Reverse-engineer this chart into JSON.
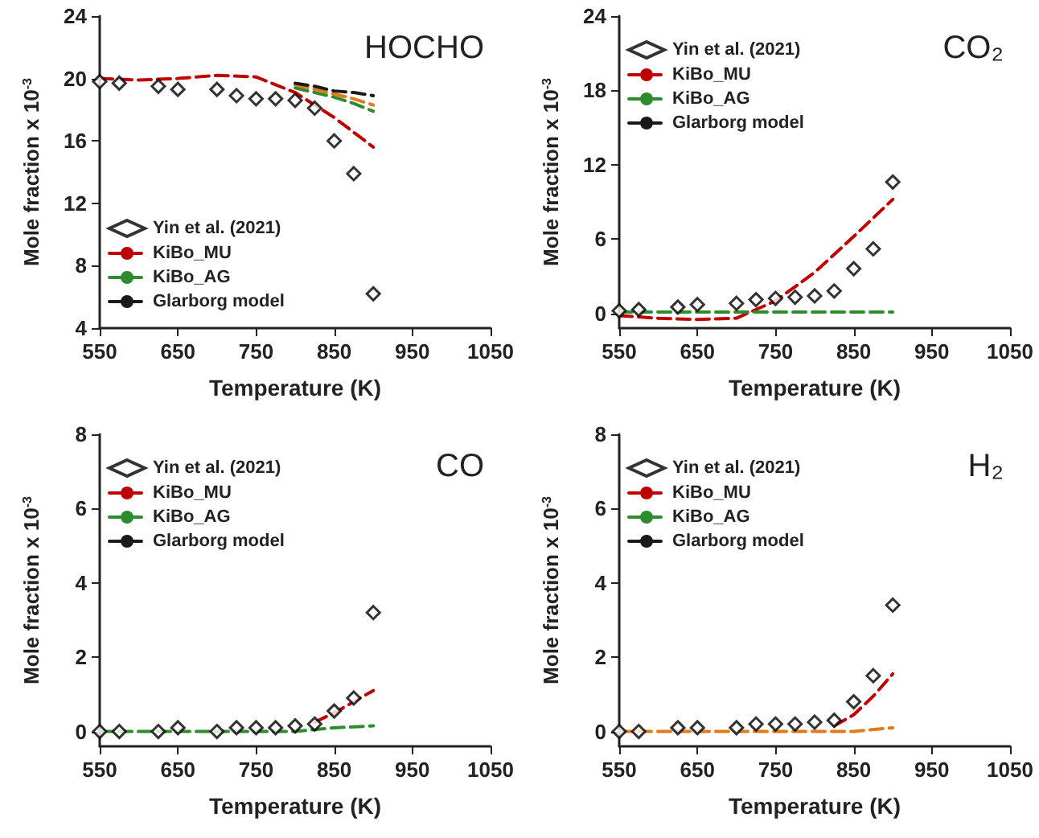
{
  "chart_data": [
    {
      "type": "line",
      "xlabel": "Temperature (K)",
      "ylabel": "Mole fraction x 10$^{-3}$",
      "annotations": [
        "HOCHO"
      ],
      "xlim": [
        550,
        1050
      ],
      "xticks": [
        550,
        650,
        750,
        850,
        950,
        1050
      ],
      "ylim": [
        4,
        24
      ],
      "yticks": [
        4,
        8,
        12,
        16,
        20,
        24
      ],
      "legend": "bottom left",
      "line_style": "dashed",
      "series": [
        {
          "name": "Yin et al. (2021)",
          "type": "scatter",
          "marker": "diamond",
          "color": "#000000",
          "x": [
            550,
            575,
            625,
            650,
            700,
            725,
            750,
            775,
            800,
            825,
            850,
            875,
            900
          ],
          "values": [
            19.8,
            19.7,
            19.5,
            19.3,
            19.3,
            18.9,
            18.7,
            18.7,
            18.6,
            18.1,
            16.0,
            13.9,
            6.2
          ]
        },
        {
          "name": "KiBo_MU",
          "color": "#c00000",
          "marker": "none",
          "x": [
            550,
            600,
            650,
            700,
            750,
            800,
            850,
            900
          ],
          "values": [
            20.0,
            19.9,
            20.0,
            20.2,
            20.1,
            19.1,
            17.5,
            15.6
          ]
        },
        {
          "name": "KiBo_AG",
          "color": "#2e8b2e",
          "marker": "none",
          "x": [
            800,
            825,
            850,
            875,
            900
          ],
          "values": [
            19.4,
            19.1,
            18.8,
            18.4,
            17.9
          ]
        },
        {
          "color": "#e07b1a",
          "marker": "none",
          "x": [
            800,
            825,
            850,
            875,
            900
          ],
          "values": [
            19.6,
            19.3,
            19.0,
            18.7,
            18.3
          ]
        },
        {
          "name": "Glarborg model",
          "color": "#1a1a1a",
          "marker": "none",
          "x": [
            800,
            825,
            850,
            875,
            900
          ],
          "values": [
            19.7,
            19.5,
            19.2,
            19.1,
            18.9
          ]
        }
      ]
    },
    {
      "type": "line",
      "xlabel": "Temperature (K)",
      "ylabel": "Mole fraction x 10$^{-3}$",
      "annotations": [
        "CO₂"
      ],
      "xlim": [
        550,
        1050
      ],
      "xticks": [
        550,
        650,
        750,
        850,
        950,
        1050
      ],
      "ylim": [
        -1.2,
        24
      ],
      "yticks": [
        0,
        6,
        12,
        18,
        24
      ],
      "legend": "top left",
      "line_style": "dashed",
      "series": [
        {
          "name": "Yin et al. (2021)",
          "type": "scatter",
          "marker": "diamond",
          "color": "#000000",
          "x": [
            550,
            575,
            625,
            650,
            700,
            725,
            750,
            775,
            800,
            825,
            850,
            875,
            900
          ],
          "values": [
            0.2,
            0.3,
            0.5,
            0.7,
            0.8,
            1.1,
            1.2,
            1.3,
            1.4,
            1.8,
            3.6,
            5.2,
            10.6
          ]
        },
        {
          "name": "KiBo_MU",
          "color": "#c00000",
          "marker": "none",
          "x": [
            550,
            600,
            650,
            700,
            750,
            800,
            850,
            900
          ],
          "values": [
            -0.2,
            -0.4,
            -0.5,
            -0.4,
            1.0,
            3.3,
            6.2,
            9.2
          ]
        },
        {
          "name": "KiBo_AG",
          "color": "#2e8b2e",
          "marker": "none",
          "x": [
            550,
            600,
            650,
            700,
            750,
            800,
            850,
            900
          ],
          "values": [
            0.1,
            0.1,
            0.1,
            0.1,
            0.1,
            0.1,
            0.1,
            0.1
          ]
        },
        {
          "name": "Glarborg model",
          "color": "#1a1a1a",
          "marker": "none"
        }
      ]
    },
    {
      "type": "line",
      "xlabel": "Temperature (K)",
      "ylabel": "Mole fraction x 10$^{-3}$",
      "annotations": [
        "CO"
      ],
      "xlim": [
        550,
        1050
      ],
      "xticks": [
        550,
        650,
        750,
        850,
        950,
        1050
      ],
      "ylim": [
        -0.4,
        8
      ],
      "yticks": [
        0,
        2,
        4,
        6,
        8
      ],
      "legend": "top left",
      "line_style": "dashed",
      "series": [
        {
          "name": "Yin et al. (2021)",
          "type": "scatter",
          "marker": "diamond",
          "color": "#000000",
          "x": [
            550,
            575,
            625,
            650,
            700,
            725,
            750,
            775,
            800,
            825,
            850,
            875,
            900
          ],
          "values": [
            0,
            0,
            0,
            0.1,
            0,
            0.1,
            0.1,
            0.1,
            0.15,
            0.2,
            0.55,
            0.9,
            3.2
          ]
        },
        {
          "name": "KiBo_MU",
          "color": "#c00000",
          "marker": "none",
          "x": [
            825,
            850,
            875,
            900
          ],
          "values": [
            0.25,
            0.5,
            0.8,
            1.1
          ]
        },
        {
          "name": "KiBo_AG",
          "color": "#2e8b2e",
          "marker": "none",
          "x": [
            550,
            600,
            650,
            700,
            750,
            800,
            850,
            900
          ],
          "values": [
            0,
            0,
            0,
            0,
            0,
            0,
            0.1,
            0.15
          ]
        },
        {
          "name": "Glarborg model",
          "color": "#1a1a1a",
          "marker": "none"
        }
      ]
    },
    {
      "type": "line",
      "xlabel": "Temperature (K)",
      "ylabel": "Mole fraction x 10$^{-3}$",
      "annotations": [
        "H₂"
      ],
      "xlim": [
        550,
        1050
      ],
      "xticks": [
        550,
        650,
        750,
        850,
        950,
        1050
      ],
      "ylim": [
        -0.4,
        8
      ],
      "yticks": [
        0,
        2,
        4,
        6,
        8
      ],
      "legend": "top left",
      "line_style": "dashed",
      "series": [
        {
          "name": "Yin et al. (2021)",
          "type": "scatter",
          "marker": "diamond",
          "color": "#000000",
          "x": [
            550,
            575,
            625,
            650,
            700,
            725,
            750,
            775,
            800,
            825,
            850,
            875,
            900
          ],
          "values": [
            0,
            0,
            0.1,
            0.1,
            0.1,
            0.2,
            0.2,
            0.2,
            0.25,
            0.3,
            0.8,
            1.5,
            3.4
          ]
        },
        {
          "name": "KiBo_MU",
          "color": "#c00000",
          "marker": "none",
          "x": [
            825,
            850,
            875,
            900
          ],
          "values": [
            0.15,
            0.45,
            0.95,
            1.55
          ]
        },
        {
          "name": "KiBo_AG",
          "color": "#2e8b2e",
          "marker": "none"
        },
        {
          "color": "#e07b1a",
          "marker": "none",
          "x": [
            550,
            600,
            650,
            700,
            750,
            800,
            850,
            900
          ],
          "values": [
            0,
            0,
            0,
            0,
            0,
            0,
            0,
            0.1
          ]
        },
        {
          "name": "Glarborg model",
          "color": "#1a1a1a",
          "marker": "none"
        }
      ]
    }
  ]
}
